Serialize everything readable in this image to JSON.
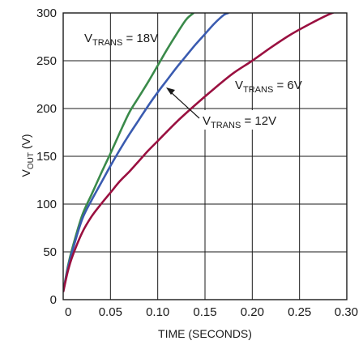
{
  "chart_data": {
    "type": "line",
    "title": "",
    "xlabel": "TIME (SECONDS)",
    "ylabel": {
      "main": "V",
      "sub": "OUT",
      "unit": " (V)"
    },
    "xlim": [
      0,
      0.3
    ],
    "ylim": [
      0,
      300
    ],
    "xticks": [
      "0",
      "0.05",
      "0.10",
      "0.15",
      "0.20",
      "0.25",
      "0.30"
    ],
    "yticks": [
      "0",
      "50",
      "100",
      "150",
      "200",
      "250",
      "300"
    ],
    "grid": true,
    "legend": "none",
    "series": [
      {
        "color": "#3a8a4a",
        "label": {
          "main": "V",
          "sub": "TRANS",
          "rest": " = 18V"
        },
        "x": [
          0,
          0.005,
          0.01,
          0.02,
          0.03,
          0.04,
          0.05,
          0.06,
          0.07,
          0.08,
          0.09,
          0.1,
          0.11,
          0.12,
          0.13,
          0.138
        ],
        "y": [
          8,
          35,
          55,
          88,
          110,
          132,
          153,
          175,
          196,
          212,
          228,
          245,
          262,
          278,
          293,
          300
        ]
      },
      {
        "color": "#3a5bb0",
        "label": {
          "main": "V",
          "sub": "TRANS",
          "rest": " = 12V"
        },
        "x": [
          0,
          0.005,
          0.01,
          0.02,
          0.03,
          0.04,
          0.05,
          0.06,
          0.07,
          0.08,
          0.09,
          0.1,
          0.11,
          0.12,
          0.13,
          0.14,
          0.15,
          0.16,
          0.17,
          0.175
        ],
        "y": [
          8,
          33,
          52,
          84,
          104,
          122,
          140,
          157,
          173,
          188,
          203,
          217,
          230,
          243,
          255,
          267,
          278,
          289,
          298,
          300
        ]
      },
      {
        "color": "#9a1040",
        "label": {
          "main": "V",
          "sub": "TRANS",
          "rest": " = 6V"
        },
        "x": [
          0,
          0.005,
          0.01,
          0.02,
          0.03,
          0.04,
          0.05,
          0.06,
          0.07,
          0.08,
          0.09,
          0.1,
          0.12,
          0.14,
          0.16,
          0.18,
          0.2,
          0.22,
          0.24,
          0.26,
          0.28,
          0.29
        ],
        "y": [
          8,
          30,
          46,
          70,
          87,
          100,
          112,
          124,
          134,
          145,
          156,
          166,
          186,
          204,
          221,
          237,
          250,
          264,
          277,
          288,
          298,
          302
        ]
      }
    ]
  }
}
